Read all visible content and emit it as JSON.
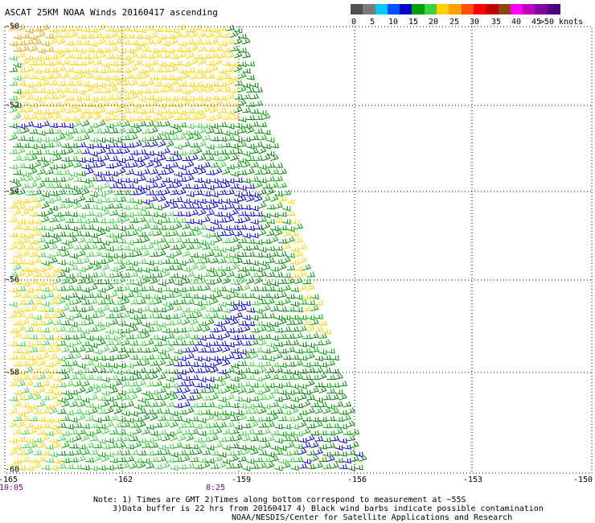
{
  "title": "ASCAT 25KM NOAA Winds 20160417 ascending",
  "color_scale": {
    "ticks": [
      "0",
      "5",
      "10",
      "15",
      "20",
      "25",
      "30",
      "35",
      "40",
      "45",
      ">50 knots"
    ],
    "colors": [
      "#505050",
      "#7a7a7a",
      "#00c8ff",
      "#0050ff",
      "#0000c8",
      "#00a000",
      "#40d040",
      "#ffd000",
      "#ffa000",
      "#ff5000",
      "#ff0000",
      "#c00000",
      "#8b4513",
      "#ff00ff",
      "#c000c0",
      "#8000a0",
      "#500080"
    ]
  },
  "map": {
    "lat_labels": [
      "-50",
      "-52",
      "-54",
      "-56",
      "-58",
      "-60"
    ],
    "lon_labels": [
      "-165",
      "-162",
      "-159",
      "-156",
      "-153",
      "-150"
    ],
    "time_labels": [
      "10:05",
      "8:25"
    ],
    "barb_colors": {
      "blue": "#0000c8",
      "green_dark": "#008000",
      "green": "#00a000",
      "green_light": "#40d040",
      "yellow": "#ffd000",
      "orange": "#e8a000"
    }
  },
  "notes": [
    "Note: 1) Times are GMT 2)Times along bottom correspond to measurement at ~55S",
    "3)Data buffer is 22 hrs from 20160417 4) Black wind barbs indicate possible contamination",
    "NOAA/NESDIS/Center for Satellite Applications and Research"
  ]
}
